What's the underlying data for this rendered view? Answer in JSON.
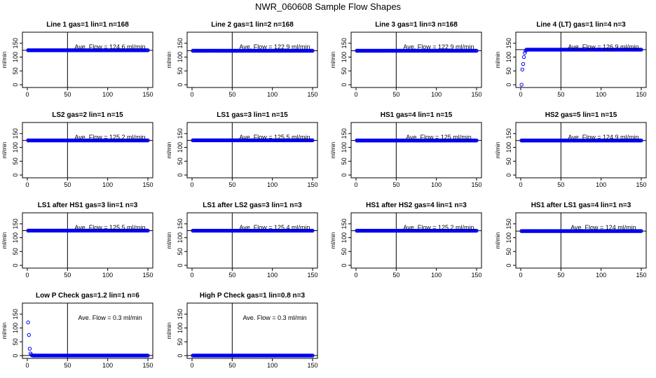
{
  "title": "NWR_060608  Sample Flow Shapes",
  "marker_color": "#0000ee",
  "chart_data": [
    {
      "type": "scatter",
      "title": "Line 1 gas=1 lin=1 n=168",
      "annotation": "Ave. Flow =  124.6  ml/min",
      "ylabel": "ml/min",
      "xlim": [
        0,
        150
      ],
      "ylim": [
        -10,
        190
      ],
      "xticks": [
        0,
        50,
        100,
        150
      ],
      "yticks": [
        0,
        50,
        100,
        150
      ],
      "hline": 124.6,
      "vline": 50,
      "x": [
        1,
        150
      ],
      "y": [
        124.6,
        124.6
      ]
    },
    {
      "type": "scatter",
      "title": "Line 2 gas=1 lin=2 n=168",
      "annotation": "Ave. Flow =  122.9  ml/min",
      "ylabel": "ml/min",
      "xlim": [
        0,
        150
      ],
      "ylim": [
        -10,
        190
      ],
      "xticks": [
        0,
        50,
        100,
        150
      ],
      "yticks": [
        0,
        50,
        100,
        150
      ],
      "hline": 122.9,
      "vline": 50,
      "x": [
        1,
        150
      ],
      "y": [
        122.9,
        122.9
      ]
    },
    {
      "type": "scatter",
      "title": "Line 3 gas=1 lin=3 n=168",
      "annotation": "Ave. Flow =  122.9  ml/min",
      "ylabel": "ml/min",
      "xlim": [
        0,
        150
      ],
      "ylim": [
        -10,
        190
      ],
      "xticks": [
        0,
        50,
        100,
        150
      ],
      "yticks": [
        0,
        50,
        100,
        150
      ],
      "hline": 122.9,
      "vline": 50,
      "x": [
        1,
        150
      ],
      "y": [
        122.9,
        122.9
      ]
    },
    {
      "type": "scatter",
      "title": "Line 4 (LT) gas=1 lin=4 n=3",
      "annotation": "Ave. Flow =  126.9  ml/min",
      "ylabel": "ml/min",
      "xlim": [
        0,
        150
      ],
      "ylim": [
        -10,
        190
      ],
      "xticks": [
        0,
        50,
        100,
        150
      ],
      "yticks": [
        0,
        50,
        100,
        150
      ],
      "hline": 126.9,
      "vline": 50,
      "x": [
        1,
        2,
        3,
        4,
        5,
        6,
        150
      ],
      "y": [
        0,
        55,
        75,
        100,
        115,
        122,
        126.9
      ]
    },
    {
      "type": "scatter",
      "title": "LS2 gas=2 lin=1 n=15",
      "annotation": "Ave. Flow =  125.2  ml/min",
      "ylabel": "ml/min",
      "xlim": [
        0,
        150
      ],
      "ylim": [
        -10,
        190
      ],
      "xticks": [
        0,
        50,
        100,
        150
      ],
      "yticks": [
        0,
        50,
        100,
        150
      ],
      "hline": 125.2,
      "vline": 50,
      "x": [
        1,
        150
      ],
      "y": [
        125.2,
        125.2
      ]
    },
    {
      "type": "scatter",
      "title": "LS1 gas=3 lin=1 n=15",
      "annotation": "Ave. Flow =  125.5  ml/min",
      "ylabel": "ml/min",
      "xlim": [
        0,
        150
      ],
      "ylim": [
        -10,
        190
      ],
      "xticks": [
        0,
        50,
        100,
        150
      ],
      "yticks": [
        0,
        50,
        100,
        150
      ],
      "hline": 125.5,
      "vline": 50,
      "x": [
        1,
        150
      ],
      "y": [
        125.5,
        125.5
      ]
    },
    {
      "type": "scatter",
      "title": "HS1 gas=4 lin=1 n=15",
      "annotation": "Ave. Flow =  125  ml/min",
      "ylabel": "ml/min",
      "xlim": [
        0,
        150
      ],
      "ylim": [
        -10,
        190
      ],
      "xticks": [
        0,
        50,
        100,
        150
      ],
      "yticks": [
        0,
        50,
        100,
        150
      ],
      "hline": 125,
      "vline": 50,
      "x": [
        1,
        150
      ],
      "y": [
        125,
        125
      ]
    },
    {
      "type": "scatter",
      "title": "HS2 gas=5 lin=1 n=15",
      "annotation": "Ave. Flow =  124.9  ml/min",
      "ylabel": "ml/min",
      "xlim": [
        0,
        150
      ],
      "ylim": [
        -10,
        190
      ],
      "xticks": [
        0,
        50,
        100,
        150
      ],
      "yticks": [
        0,
        50,
        100,
        150
      ],
      "hline": 124.9,
      "vline": 50,
      "x": [
        1,
        150
      ],
      "y": [
        124.9,
        124.9
      ]
    },
    {
      "type": "scatter",
      "title": "LS1 after HS1 gas=3 lin=1 n=3",
      "annotation": "Ave. Flow =  125.5  ml/min",
      "ylabel": "ml/min",
      "xlim": [
        0,
        150
      ],
      "ylim": [
        -10,
        190
      ],
      "xticks": [
        0,
        50,
        100,
        150
      ],
      "yticks": [
        0,
        50,
        100,
        150
      ],
      "hline": 125.5,
      "vline": 50,
      "x": [
        1,
        150
      ],
      "y": [
        125.5,
        125.5
      ]
    },
    {
      "type": "scatter",
      "title": "LS1 after LS2 gas=3 lin=1 n=3",
      "annotation": "Ave. Flow =  125.4  ml/min",
      "ylabel": "ml/min",
      "xlim": [
        0,
        150
      ],
      "ylim": [
        -10,
        190
      ],
      "xticks": [
        0,
        50,
        100,
        150
      ],
      "yticks": [
        0,
        50,
        100,
        150
      ],
      "hline": 125.4,
      "vline": 50,
      "x": [
        1,
        150
      ],
      "y": [
        125.4,
        125.4
      ]
    },
    {
      "type": "scatter",
      "title": "HS1 after HS2 gas=4 lin=1 n=3",
      "annotation": "Ave. Flow =  125.2  ml/min",
      "ylabel": "ml/min",
      "xlim": [
        0,
        150
      ],
      "ylim": [
        -10,
        190
      ],
      "xticks": [
        0,
        50,
        100,
        150
      ],
      "yticks": [
        0,
        50,
        100,
        150
      ],
      "hline": 125.2,
      "vline": 50,
      "x": [
        1,
        150
      ],
      "y": [
        125.2,
        125.2
      ]
    },
    {
      "type": "scatter",
      "title": "HS1 after LS1 gas=4 lin=1 n=3",
      "annotation": "Ave. Flow =  124  ml/min",
      "ylabel": "ml/min",
      "xlim": [
        0,
        150
      ],
      "ylim": [
        -10,
        190
      ],
      "xticks": [
        0,
        50,
        100,
        150
      ],
      "yticks": [
        0,
        50,
        100,
        150
      ],
      "hline": 124,
      "vline": 50,
      "x": [
        1,
        150
      ],
      "y": [
        124,
        124
      ]
    },
    {
      "type": "scatter",
      "title": "Low P Check gas=1.2 lin=1 n=6",
      "annotation": "Ave. Flow =  0.3  ml/min",
      "ylabel": "ml/min",
      "xlim": [
        0,
        150
      ],
      "ylim": [
        -10,
        190
      ],
      "xticks": [
        0,
        50,
        100,
        150
      ],
      "yticks": [
        0,
        50,
        100,
        150
      ],
      "hline": 0.3,
      "vline": 50,
      "x": [
        1,
        2,
        3,
        4,
        5,
        6,
        150
      ],
      "y": [
        120,
        75,
        25,
        8,
        3,
        1,
        0.3
      ]
    },
    {
      "type": "scatter",
      "title": "High P Check gas=1 lin=0.8 n=3",
      "annotation": "Ave. Flow =  0.3  ml/min",
      "ylabel": "ml/min",
      "xlim": [
        0,
        150
      ],
      "ylim": [
        -10,
        190
      ],
      "xticks": [
        0,
        50,
        100,
        150
      ],
      "yticks": [
        0,
        50,
        100,
        150
      ],
      "hline": 0.3,
      "vline": 50,
      "x": [
        1,
        150
      ],
      "y": [
        0.3,
        0.3
      ]
    }
  ]
}
